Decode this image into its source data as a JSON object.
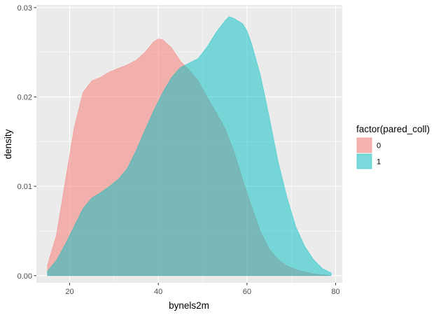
{
  "chart_data": {
    "type": "area",
    "subtype": "density",
    "title": "",
    "xlabel": "bynels2m",
    "ylabel": "density",
    "xlim": [
      12.5,
      81.5
    ],
    "ylim": [
      -0.0008,
      0.0303
    ],
    "x_ticks": [
      20,
      40,
      60,
      80
    ],
    "x_tick_labels": [
      "20",
      "40",
      "60",
      "80"
    ],
    "y_ticks": [
      0,
      0.01,
      0.02,
      0.03
    ],
    "y_tick_labels": [
      "0.00",
      "0.01",
      "0.02",
      "0.03"
    ],
    "grid": true,
    "legend": {
      "title": "factor(pared_coll)",
      "position": "right"
    },
    "series": [
      {
        "name": "0",
        "color": "#F8766D",
        "points": [
          [
            15,
            0.0012
          ],
          [
            17,
            0.0045
          ],
          [
            19,
            0.0105
          ],
          [
            21,
            0.0165
          ],
          [
            23,
            0.0205
          ],
          [
            25,
            0.0218
          ],
          [
            27,
            0.0222
          ],
          [
            29,
            0.0228
          ],
          [
            31,
            0.0232
          ],
          [
            33,
            0.0236
          ],
          [
            35,
            0.0241
          ],
          [
            37,
            0.025
          ],
          [
            39,
            0.0262
          ],
          [
            40,
            0.0265
          ],
          [
            41,
            0.0264
          ],
          [
            43,
            0.0255
          ],
          [
            45,
            0.024
          ],
          [
            47,
            0.023
          ],
          [
            49,
            0.0218
          ],
          [
            51,
            0.02
          ],
          [
            53,
            0.0183
          ],
          [
            55,
            0.0165
          ],
          [
            57,
            0.014
          ],
          [
            59,
            0.0108
          ],
          [
            61,
            0.0078
          ],
          [
            63,
            0.005
          ],
          [
            65,
            0.003
          ],
          [
            67,
            0.0018
          ],
          [
            69,
            0.0011
          ],
          [
            71,
            0.0007
          ],
          [
            73,
            0.0004
          ],
          [
            75,
            0.0002
          ],
          [
            77,
            0.0001
          ],
          [
            79,
            0.0
          ]
        ]
      },
      {
        "name": "1",
        "color": "#00BFC4",
        "points": [
          [
            15,
            0.0005
          ],
          [
            17,
            0.0017
          ],
          [
            19,
            0.0035
          ],
          [
            21,
            0.0055
          ],
          [
            23,
            0.0075
          ],
          [
            25,
            0.0087
          ],
          [
            27,
            0.0093
          ],
          [
            29,
            0.01
          ],
          [
            31,
            0.0108
          ],
          [
            33,
            0.012
          ],
          [
            35,
            0.014
          ],
          [
            37,
            0.0163
          ],
          [
            39,
            0.0185
          ],
          [
            41,
            0.0205
          ],
          [
            43,
            0.0222
          ],
          [
            45,
            0.0233
          ],
          [
            47,
            0.0238
          ],
          [
            49,
            0.0243
          ],
          [
            51,
            0.0256
          ],
          [
            53,
            0.0272
          ],
          [
            55,
            0.0285
          ],
          [
            56,
            0.029
          ],
          [
            57,
            0.0288
          ],
          [
            59,
            0.0282
          ],
          [
            60,
            0.0274
          ],
          [
            61,
            0.026
          ],
          [
            63,
            0.0225
          ],
          [
            65,
            0.0178
          ],
          [
            67,
            0.0128
          ],
          [
            69,
            0.0088
          ],
          [
            71,
            0.0055
          ],
          [
            73,
            0.0033
          ],
          [
            75,
            0.0018
          ],
          [
            77,
            0.0008
          ],
          [
            79,
            0.0003
          ]
        ]
      }
    ]
  }
}
